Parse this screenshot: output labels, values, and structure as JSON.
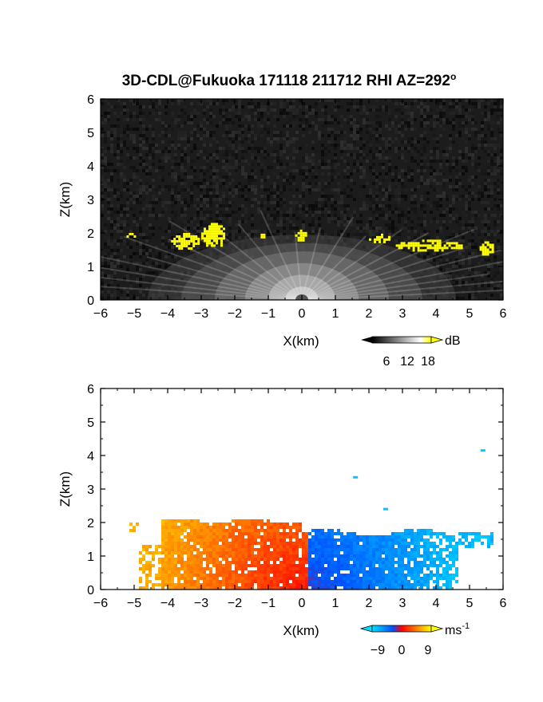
{
  "title": "3D-CDL@Fukuoka 171118 211712 RHI AZ=292",
  "title_degree_symbol": "o",
  "chart_data": [
    {
      "type": "heatmap",
      "panel": "top",
      "quantity": "backscatter intensity",
      "xlabel": "X(km)",
      "ylabel": "Z(km)",
      "xlim": [
        -6,
        6
      ],
      "ylim": [
        0,
        6
      ],
      "xticks": [
        -6,
        -5,
        -4,
        -3,
        -2,
        -1,
        0,
        1,
        2,
        3,
        4,
        5,
        6
      ],
      "yticks": [
        0,
        1,
        2,
        3,
        4,
        5,
        6
      ],
      "colorbar": {
        "unit": "dB",
        "ticks": [
          "6",
          "12",
          "18"
        ],
        "range": [
          0,
          21
        ],
        "colors": [
          "#000000",
          "#ffffff",
          "#ffff00"
        ]
      },
      "grid": false,
      "cloud_echoes_yellow": [
        {
          "x": [
            -5.3,
            -4.9
          ],
          "z": [
            1.92,
            2.0
          ]
        },
        {
          "x": [
            -3.9,
            -3.1
          ],
          "z": [
            1.55,
            2.0
          ]
        },
        {
          "x": [
            -3.0,
            -2.3
          ],
          "z": [
            1.6,
            2.3
          ]
        },
        {
          "x": [
            -1.3,
            -1.1
          ],
          "z": [
            1.85,
            2.05
          ]
        },
        {
          "x": [
            -0.2,
            0.1
          ],
          "z": [
            1.8,
            2.1
          ]
        },
        {
          "x": [
            2.0,
            2.6
          ],
          "z": [
            1.75,
            1.98
          ]
        },
        {
          "x": [
            2.8,
            4.8
          ],
          "z": [
            1.5,
            1.8
          ]
        },
        {
          "x": [
            5.3,
            5.7
          ],
          "z": [
            1.35,
            1.75
          ]
        }
      ]
    },
    {
      "type": "heatmap",
      "panel": "bottom",
      "quantity": "radial velocity",
      "xlabel": "X(km)",
      "ylabel": "Z(km)",
      "xlim": [
        -6,
        6
      ],
      "ylim": [
        0,
        6
      ],
      "xticks": [
        -6,
        -5,
        -4,
        -3,
        -2,
        -1,
        0,
        1,
        2,
        3,
        4,
        5,
        6
      ],
      "yticks": [
        0,
        1,
        2,
        3,
        4,
        5,
        6
      ],
      "colorbar": {
        "unit": "ms",
        "unit_exponent": "-1",
        "ticks": [
          "-9",
          "0",
          "9"
        ],
        "range": [
          -12,
          12
        ],
        "colors": [
          "#00e0ff",
          "#0050ff",
          "#ff0000",
          "#ff8000",
          "#ffff00"
        ]
      },
      "grid": false,
      "velocity_field": {
        "negative_side_x_km": [
          -5.2,
          0.1
        ],
        "positive_side_x_km": [
          0.1,
          5.7
        ],
        "echo_top_km": 2.2,
        "near_origin_ms": 1,
        "far_range_ms": 8
      },
      "isolated_returns": [
        {
          "x": 5.4,
          "z": 4.15
        },
        {
          "x": 1.6,
          "z": 3.35
        },
        {
          "x": 2.5,
          "z": 2.4
        }
      ]
    }
  ]
}
